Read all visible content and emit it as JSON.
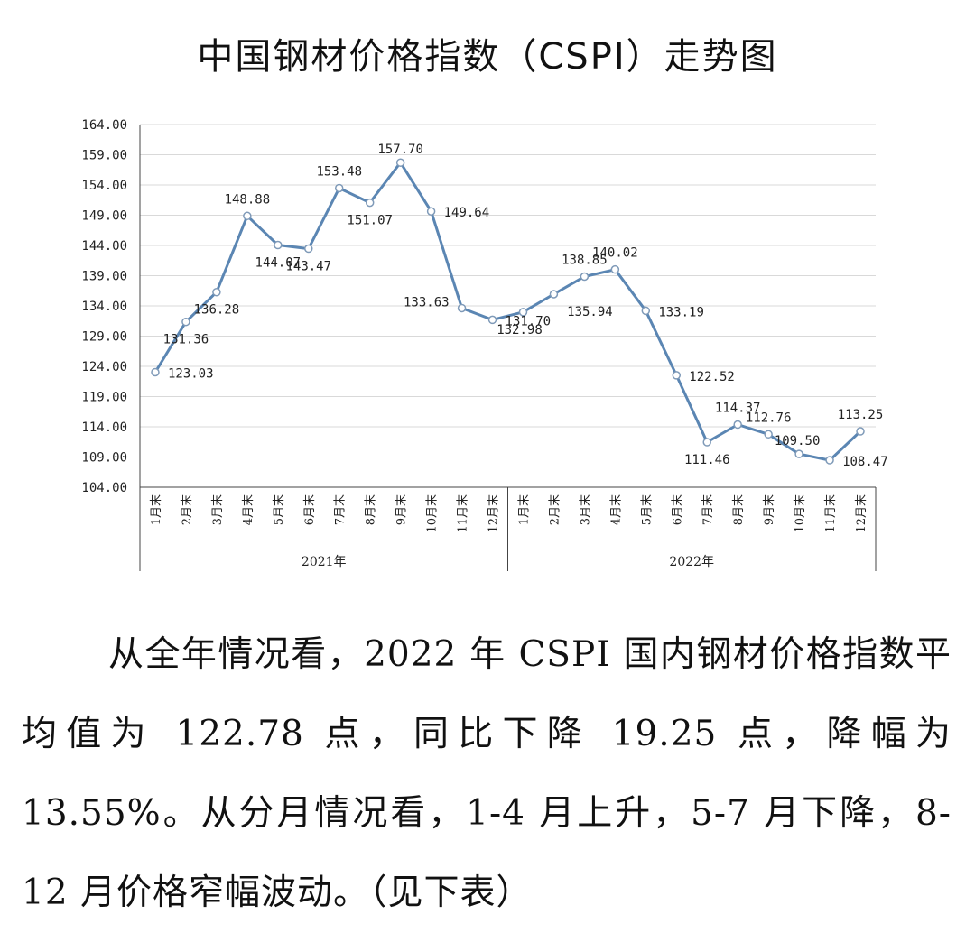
{
  "page": {
    "title": "中国钢材价格指数（CSPI）走势图",
    "paragraph": "从全年情况看，2022 年 CSPI 国内钢材价格指数平均值为 122.78 点，同比下降 19.25 点，降幅为 13.55%。从分月情况看，1-4 月上升，5-7 月下降，8-12 月价格窄幅波动。（见下表）"
  },
  "chart_data": {
    "type": "line",
    "title": "中国钢材价格指数（CSPI）走势图",
    "categories": [
      "1月末",
      "2月末",
      "3月末",
      "4月末",
      "5月末",
      "6月末",
      "7月末",
      "8月末",
      "9月末",
      "10月末",
      "11月末",
      "12月末",
      "1月末",
      "2月末",
      "3月末",
      "4月末",
      "5月末",
      "6月末",
      "7月末",
      "8月末",
      "9月末",
      "10月末",
      "11月末",
      "12月末"
    ],
    "groups": [
      {
        "label": "2021年",
        "count": 12
      },
      {
        "label": "2022年",
        "count": 12
      }
    ],
    "series": [
      {
        "values": [
          123.03,
          131.36,
          136.28,
          148.88,
          144.07,
          143.47,
          153.48,
          151.07,
          157.7,
          149.64,
          133.63,
          131.7,
          132.98,
          135.94,
          138.85,
          140.02,
          133.19,
          122.52,
          111.46,
          114.37,
          112.76,
          109.5,
          108.47,
          113.25
        ],
        "value_labels": [
          "123.03",
          "131.36",
          "136.28",
          "148.88",
          "144.07",
          "143.47",
          "153.48",
          "151.07",
          "157.70",
          "149.64",
          "133.63",
          "131.70",
          "132.98",
          "135.94",
          "138.85",
          "140.02",
          "133.19",
          "122.52",
          "111.46",
          "114.37",
          "112.76",
          "109.50",
          "108.47",
          "113.25"
        ]
      }
    ],
    "y_ticks": [
      "104.00",
      "109.00",
      "114.00",
      "119.00",
      "124.00",
      "129.00",
      "134.00",
      "139.00",
      "144.00",
      "149.00",
      "154.00",
      "159.00",
      "164.00"
    ],
    "ylim": [
      104,
      164
    ],
    "grid": true,
    "line_color": "#5b86b3",
    "marker_fill": "#ffffff"
  }
}
